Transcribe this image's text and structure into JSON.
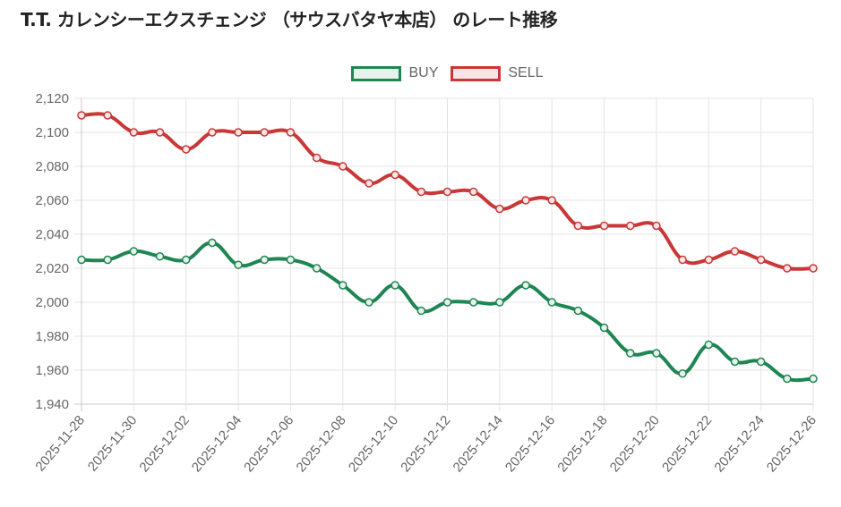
{
  "page": {
    "title": "T.T. カレンシーエクスチェンジ （サウスバタヤ本店） のレート推移"
  },
  "chart_data": {
    "type": "line",
    "x": [
      "2025-11-28",
      "2025-11-29",
      "2025-11-30",
      "2025-12-01",
      "2025-12-02",
      "2025-12-03",
      "2025-12-04",
      "2025-12-05",
      "2025-12-06",
      "2025-12-07",
      "2025-12-08",
      "2025-12-09",
      "2025-12-10",
      "2025-12-11",
      "2025-12-12",
      "2025-12-13",
      "2025-12-14",
      "2025-12-15",
      "2025-12-16",
      "2025-12-17",
      "2025-12-18",
      "2025-12-19",
      "2025-12-20",
      "2025-12-21",
      "2025-12-22",
      "2025-12-23",
      "2025-12-24",
      "2025-12-25",
      "2025-12-26"
    ],
    "x_tick_labels": [
      "2025-11-28",
      "2025-11-30",
      "2025-12-02",
      "2025-12-04",
      "2025-12-06",
      "2025-12-08",
      "2025-12-10",
      "2025-12-12",
      "2025-12-14",
      "2025-12-16",
      "2025-12-18",
      "2025-12-20",
      "2025-12-22",
      "2025-12-24",
      "2025-12-26"
    ],
    "y_tick_labels": [
      "2,120",
      "2,100",
      "2,080",
      "2,060",
      "2,040",
      "2,020",
      "2,000",
      "1,980",
      "1,960",
      "1,940"
    ],
    "ylim": [
      1940,
      2120
    ],
    "grid": true,
    "legend_position": "top",
    "series": [
      {
        "name": "BUY",
        "color": "#1e8553",
        "fill": "#e6f2ea",
        "values": [
          2025,
          2025,
          2030,
          2027,
          2025,
          2035,
          2022,
          2025,
          2025,
          2020,
          2010,
          2000,
          2010,
          1995,
          2000,
          2000,
          2000,
          2010,
          2000,
          1995,
          1985,
          1970,
          1970,
          1958,
          1975,
          1965,
          1965,
          1955,
          1955
        ]
      },
      {
        "name": "SELL",
        "color": "#c93737",
        "fill": "#f8e6e6",
        "values": [
          2110,
          2110,
          2100,
          2100,
          2090,
          2100,
          2100,
          2100,
          2100,
          2085,
          2080,
          2070,
          2075,
          2065,
          2065,
          2065,
          2055,
          2060,
          2060,
          2045,
          2045,
          2045,
          2045,
          2025,
          2025,
          2030,
          2025,
          2020,
          2020
        ]
      }
    ]
  }
}
